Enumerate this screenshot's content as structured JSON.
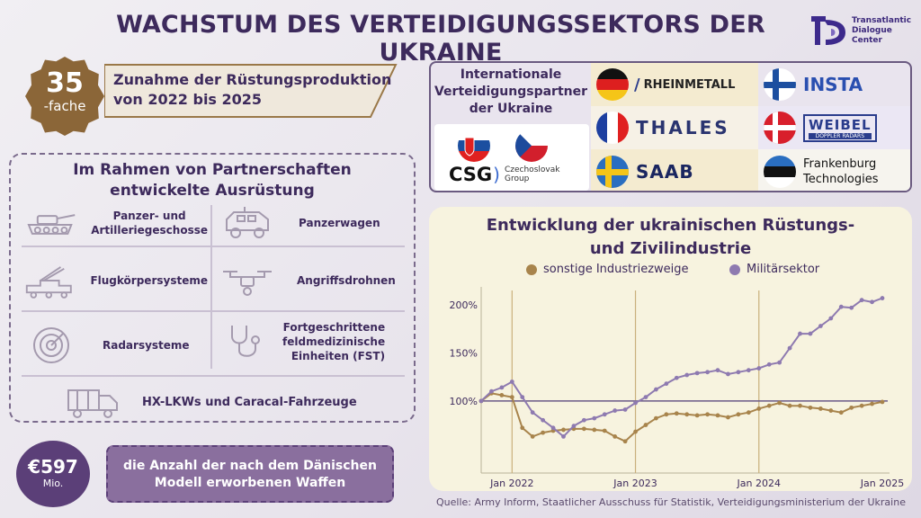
{
  "header": {
    "title": "WACHSTUM DES VERTEIDIGUNGSSEKTORS DER UKRAINE",
    "logo_lines": [
      "Transatlantic",
      "Dialogue",
      "Center"
    ],
    "logo_icon": "tdc-logo-icon"
  },
  "growth": {
    "number": "35",
    "unit": "-fache",
    "text_line1": "Zunahme der Rüstungsproduktion",
    "text_line2": "von 2022 bis 2025"
  },
  "equipment": {
    "title_line1": "Im Rahmen von Partnerschaften",
    "title_line2": "entwickelte Ausrüstung",
    "items": [
      {
        "icon": "tank-icon",
        "label_line1": "Panzer- und",
        "label_line2": "Artilleriegeschosse"
      },
      {
        "icon": "armored-car-icon",
        "label_line1": "Panzerwagen",
        "label_line2": ""
      },
      {
        "icon": "missile-launcher-icon",
        "label_line1": "Flugkörpersysteme",
        "label_line2": ""
      },
      {
        "icon": "drone-icon",
        "label_line1": "Angriffsdrohnen",
        "label_line2": ""
      },
      {
        "icon": "radar-icon",
        "label_line1": "Radarsysteme",
        "label_line2": ""
      },
      {
        "icon": "stethoscope-icon",
        "label_line1": "Fortgeschrittene",
        "label_line2": "feldmedizinische",
        "label_line3": "Einheiten (FST)"
      },
      {
        "icon": "truck-icon",
        "label_line1": "HX-LKWs und Caracal-Fahrzeuge",
        "label_line2": ""
      }
    ]
  },
  "weapons": {
    "amount": "€597",
    "unit": "Mio.",
    "text_line1": "die Anzahl der nach dem Dänischen",
    "text_line2": "Modell erworbenen Waffen"
  },
  "partners": {
    "title_line1": "Internationale",
    "title_line2": "Verteidigungspartner",
    "title_line3": "der Ukraine",
    "companies": [
      {
        "flag": "germany-flag",
        "name": "RHEINMETALL"
      },
      {
        "flag": "france-flag",
        "name": "THALES"
      },
      {
        "flag": "sweden-flag",
        "name": "SAAB"
      },
      {
        "flag": "finland-flag",
        "name": "INSTA"
      },
      {
        "flag": "denmark-flag",
        "name": "WEIBEL",
        "subtitle": "DOPPLER RADARS"
      },
      {
        "flag": "estonia-flag",
        "name_line1": "Frankenburg",
        "name_line2": "Technologies"
      },
      {
        "flag": "slovakia-flag",
        "name": ""
      },
      {
        "flag": "czech-flag",
        "name": "CSG",
        "subtitle_line1": "Czechoslovak",
        "subtitle_line2": "Group"
      }
    ]
  },
  "chart_data": {
    "type": "line",
    "title": "Entwicklung der ukrainischen Rüstungs- und Zivilindustrie",
    "title_line1": "Entwicklung der ukrainischen Rüstungs-",
    "title_line2": "und Zivilindustrie",
    "x": [
      "2021-10",
      "2021-11",
      "2021-12",
      "2022-01",
      "2022-02",
      "2022-03",
      "2022-04",
      "2022-05",
      "2022-06",
      "2022-07",
      "2022-08",
      "2022-09",
      "2022-10",
      "2022-11",
      "2022-12",
      "2023-01",
      "2023-02",
      "2023-03",
      "2023-04",
      "2023-05",
      "2023-06",
      "2023-07",
      "2023-08",
      "2023-09",
      "2023-10",
      "2023-11",
      "2023-12",
      "2024-01",
      "2024-02",
      "2024-03",
      "2024-04",
      "2024-05",
      "2024-06",
      "2024-07",
      "2024-08",
      "2024-09",
      "2024-10",
      "2024-11",
      "2024-12",
      "2025-01"
    ],
    "x_tick_labels": [
      "Jan 2022",
      "Jan 2023",
      "Jan 2024",
      "Jan 2025"
    ],
    "x_tick_positions": [
      "2022-01",
      "2023-01",
      "2024-01",
      "2025-01"
    ],
    "y_tick_labels": [
      "200%",
      "150%",
      "100%"
    ],
    "y_tick_values": [
      200,
      150,
      100
    ],
    "ylim": [
      25,
      215
    ],
    "series": [
      {
        "name": "sonstige Industriezweige",
        "color": "#a8844c",
        "values": [
          100,
          108,
          106,
          104,
          72,
          63,
          67,
          69,
          70,
          71,
          71,
          70,
          69,
          63,
          58,
          68,
          75,
          82,
          86,
          87,
          86,
          85,
          86,
          85,
          83,
          86,
          88,
          92,
          95,
          98,
          95,
          95,
          93,
          92,
          90,
          88,
          93,
          95,
          97,
          99
        ]
      },
      {
        "name": "Militärsektor",
        "color": "#8e7ab0",
        "values": [
          100,
          110,
          114,
          120,
          104,
          88,
          80,
          72,
          63,
          74,
          80,
          82,
          86,
          90,
          91,
          98,
          104,
          112,
          118,
          124,
          127,
          129,
          130,
          132,
          128,
          130,
          132,
          134,
          138,
          140,
          155,
          170,
          170,
          178,
          186,
          198,
          197,
          205,
          203,
          207
        ]
      }
    ],
    "reference_line": 100,
    "grid": false,
    "legend_position": "top"
  },
  "source": "Quelle: Army Inform, Staatlicher Ausschuss für Statistik, Verteidigungsministerium der Ukraine"
}
